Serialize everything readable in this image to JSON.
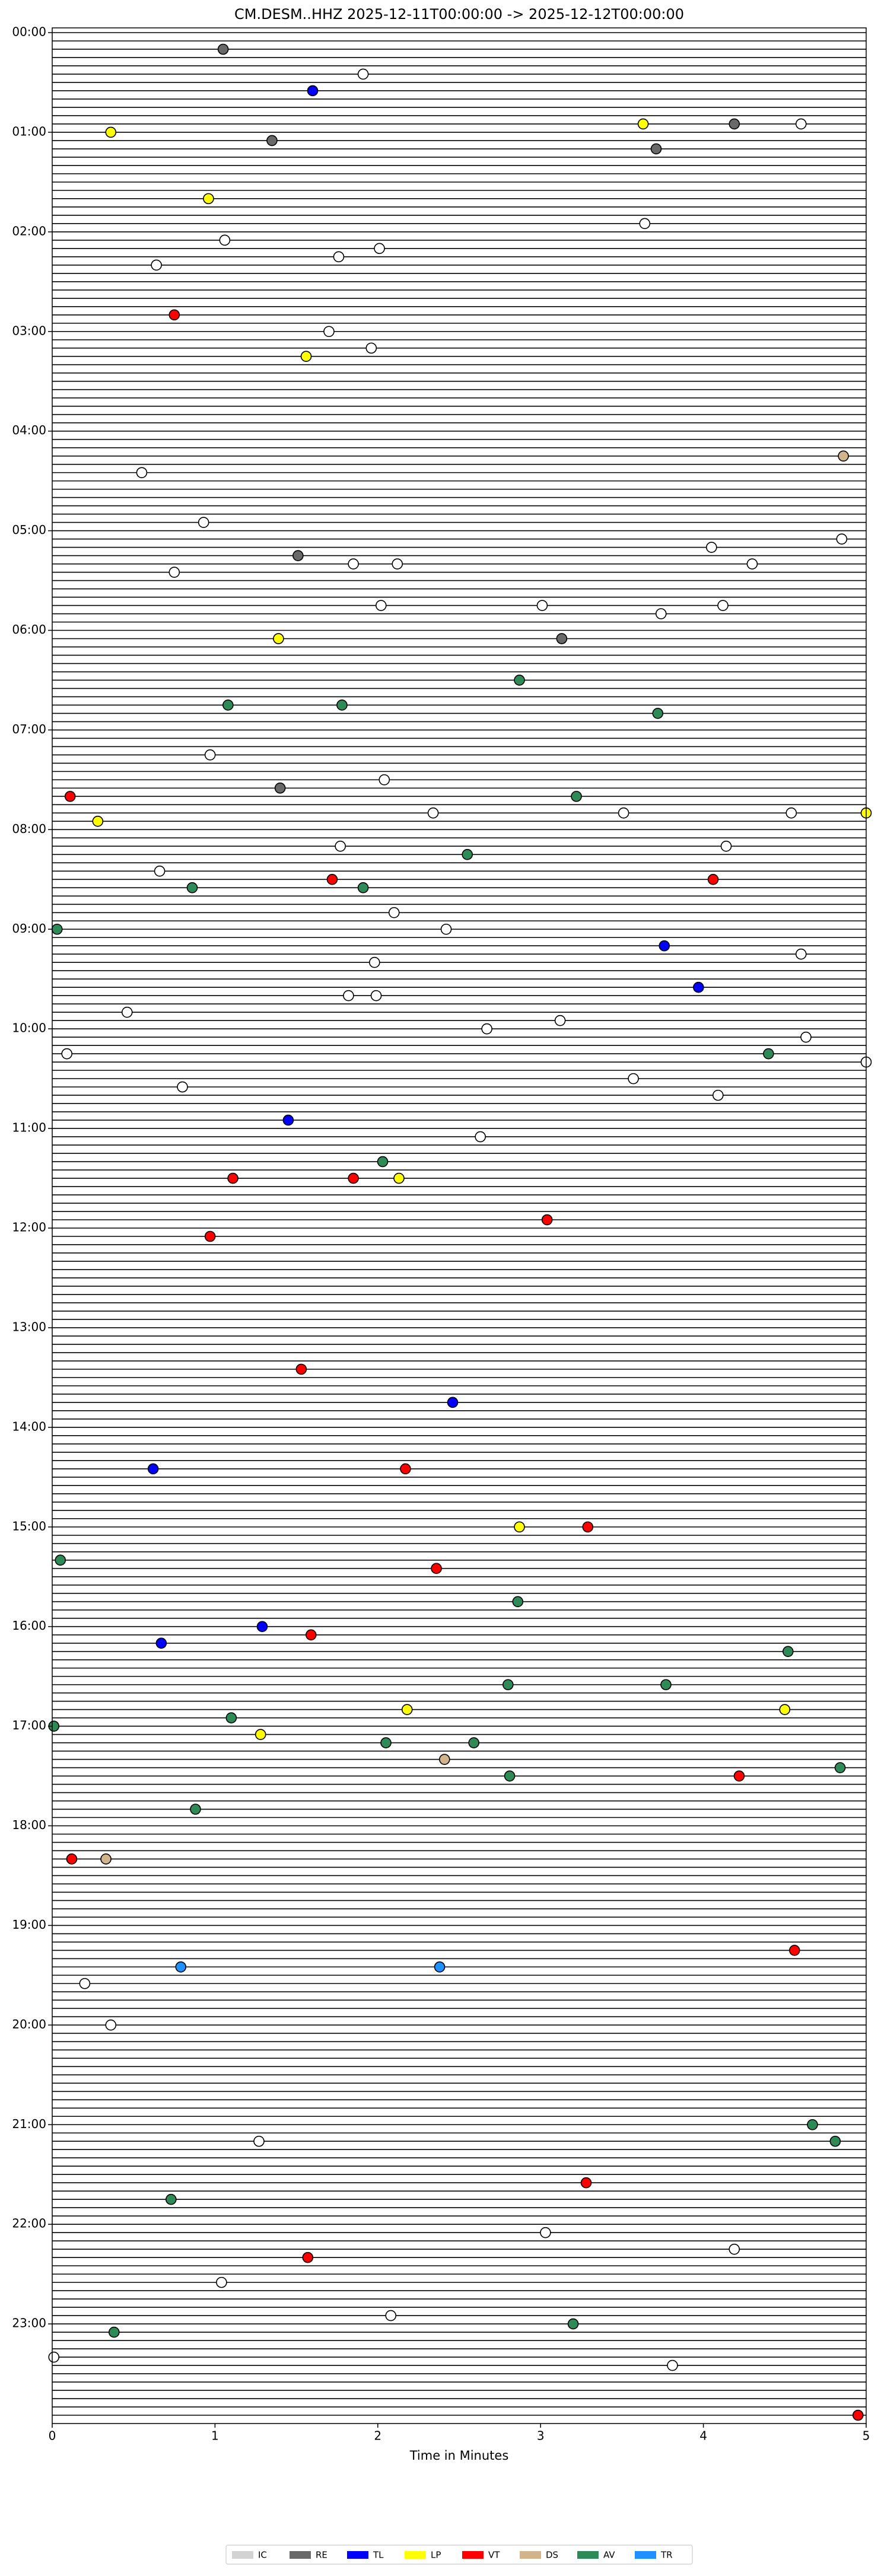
{
  "chart_data": {
    "type": "helicorder",
    "title": "CM.DESM..HHZ  2025-12-11T00:00:00 -> 2025-12-12T00:00:00",
    "xlabel": "Time in Minutes",
    "xlim": [
      0,
      5
    ],
    "xticks": [
      0,
      1,
      2,
      3,
      4,
      5
    ],
    "ylim": [
      0,
      24
    ],
    "yticks": [
      {
        "value": 0,
        "label": "00:00"
      },
      {
        "value": 1,
        "label": "01:00"
      },
      {
        "value": 2,
        "label": "02:00"
      },
      {
        "value": 3,
        "label": "03:00"
      },
      {
        "value": 4,
        "label": "04:00"
      },
      {
        "value": 5,
        "label": "05:00"
      },
      {
        "value": 6,
        "label": "06:00"
      },
      {
        "value": 7,
        "label": "07:00"
      },
      {
        "value": 8,
        "label": "08:00"
      },
      {
        "value": 9,
        "label": "09:00"
      },
      {
        "value": 10,
        "label": "10:00"
      },
      {
        "value": 11,
        "label": "11:00"
      },
      {
        "value": 12,
        "label": "12:00"
      },
      {
        "value": 13,
        "label": "13:00"
      },
      {
        "value": 14,
        "label": "14:00"
      },
      {
        "value": 15,
        "label": "15:00"
      },
      {
        "value": 16,
        "label": "16:00"
      },
      {
        "value": 17,
        "label": "17:00"
      },
      {
        "value": 18,
        "label": "18:00"
      },
      {
        "value": 19,
        "label": "19:00"
      },
      {
        "value": 20,
        "label": "20:00"
      },
      {
        "value": 21,
        "label": "21:00"
      },
      {
        "value": 22,
        "label": "22:00"
      },
      {
        "value": 23,
        "label": "23:00"
      }
    ],
    "legend": "lower center",
    "series": [
      {
        "name": "IC",
        "color": "#d3d3d3",
        "x": [],
        "y": []
      },
      {
        "name": "RE",
        "color": "#696969",
        "x": [
          1.05,
          1.35,
          4.19,
          3.71,
          1.4,
          1.51,
          3.13
        ],
        "y": [
          0.1667,
          1.0833,
          0.9167,
          1.1667,
          7.5833,
          5.25,
          6.0833
        ]
      },
      {
        "name": "TL",
        "color": "#0000ff",
        "x": [
          1.6,
          3.76,
          3.97,
          1.45,
          0.62,
          0.67,
          1.29,
          2.46
        ],
        "y": [
          0.5833,
          9.1667,
          9.5833,
          10.9167,
          14.4167,
          16.1667,
          16.0,
          13.75
        ]
      },
      {
        "name": "LP",
        "color": "#ffff00",
        "x": [
          0.36,
          3.63,
          0.96,
          1.56,
          1.39,
          0.28,
          2.13,
          2.87,
          2.18,
          1.28,
          4.5,
          5.0
        ],
        "y": [
          1.0,
          0.9167,
          1.6667,
          3.25,
          6.0833,
          7.9167,
          11.5,
          15.0,
          16.8333,
          17.0833,
          16.8333,
          7.8333
        ]
      },
      {
        "name": "VT",
        "color": "#ff0000",
        "x": [
          0.75,
          0.11,
          1.72,
          4.06,
          1.11,
          1.85,
          0.97,
          3.04,
          1.53,
          2.17,
          3.29,
          2.36,
          1.59,
          4.22,
          0.12,
          4.56,
          1.57,
          3.28,
          4.95
        ],
        "y": [
          2.8333,
          7.6667,
          8.5,
          8.5,
          11.5,
          11.5,
          12.0833,
          11.9167,
          13.4167,
          14.4167,
          15.0,
          15.4167,
          16.0833,
          17.5,
          18.3333,
          19.25,
          22.3333,
          21.5833,
          23.9167
        ]
      },
      {
        "name": "DS",
        "color": "#d2b48c",
        "x": [
          4.86,
          2.41,
          0.33
        ],
        "y": [
          4.25,
          17.3333,
          18.3333
        ]
      },
      {
        "name": "AV",
        "color": "#2e8b57",
        "x": [
          0.03,
          1.08,
          1.78,
          2.87,
          3.72,
          3.22,
          2.55,
          0.86,
          1.91,
          4.4,
          2.03,
          0.05,
          2.86,
          2.8,
          3.77,
          4.52,
          2.05,
          2.59,
          2.81,
          0.88,
          4.84,
          0.38,
          0.73,
          4.67,
          4.81,
          3.2,
          0.01,
          1.1
        ],
        "y": [
          9.0,
          6.75,
          6.75,
          6.5,
          6.8333,
          7.6667,
          8.25,
          8.5833,
          8.5833,
          10.25,
          11.3333,
          15.3333,
          15.75,
          16.5833,
          16.5833,
          16.25,
          17.1667,
          17.1667,
          17.5,
          17.8333,
          17.4167,
          23.0833,
          21.75,
          21.0,
          21.1667,
          23.0,
          17.0,
          16.9167
        ]
      },
      {
        "name": "TR",
        "color": "#1e90ff",
        "x": [
          2.38,
          0.79
        ],
        "y": [
          19.4167,
          19.4167
        ]
      }
    ],
    "unclassified": {
      "color": "#ffffff",
      "x": [
        1.91,
        4.6,
        1.06,
        1.76,
        2.01,
        0.64,
        3.64,
        1.7,
        1.96,
        0.55,
        0.93,
        4.85,
        4.05,
        4.3,
        0.75,
        1.85,
        2.12,
        2.02,
        3.01,
        4.12,
        3.74,
        0.97,
        2.04,
        2.34,
        3.51,
        4.54,
        4.14,
        1.77,
        0.66,
        2.1,
        2.42,
        1.98,
        1.82,
        1.99,
        4.6,
        0.46,
        2.67,
        3.12,
        4.63,
        0.09,
        0.8,
        3.57,
        4.09,
        2.63,
        5.0,
        0.2,
        0.36,
        1.27,
        3.03,
        4.19,
        2.08,
        1.04,
        0.01,
        3.81
      ],
      "y": [
        0.4167,
        0.9167,
        2.0833,
        2.25,
        2.1667,
        2.3333,
        1.9167,
        3.0,
        3.1667,
        4.4167,
        4.9167,
        5.0833,
        5.1667,
        5.3333,
        5.4167,
        5.3333,
        5.3333,
        5.75,
        5.75,
        5.75,
        5.8333,
        7.25,
        7.5,
        7.8333,
        7.8333,
        7.8333,
        8.1667,
        8.1667,
        8.4167,
        8.8333,
        9.0,
        9.3333,
        9.6667,
        9.6667,
        9.25,
        9.8333,
        10.0,
        9.9167,
        10.0833,
        10.25,
        10.5833,
        10.5,
        10.6667,
        11.0833,
        10.3333,
        19.5833,
        20.0,
        21.1667,
        22.0833,
        22.25,
        22.9167,
        22.5833,
        23.3333,
        23.4167
      ]
    }
  }
}
